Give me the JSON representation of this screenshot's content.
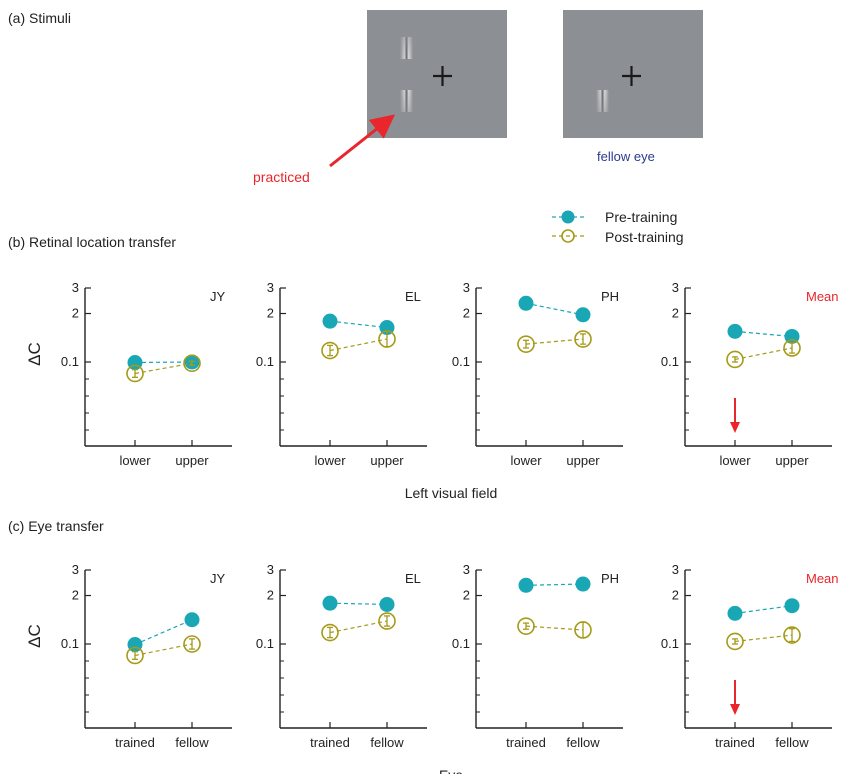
{
  "stimuli": {
    "title": "(a) Stimuli",
    "practiced_label": "practiced",
    "fellow_label": "fellow eye",
    "panel_bg": "#8c8f94"
  },
  "legend": {
    "pre": "Pre-training",
    "post": "Post-training"
  },
  "colors": {
    "pre": "#1aa7b5",
    "post": "#a69a18",
    "accent": "#e8262b",
    "fellow_text": "#2b3a8f"
  },
  "chart_data": [
    {
      "type": "scatter",
      "section": "(b) Retinal location transfer",
      "subject": "JY",
      "categories": [
        "lower",
        "upper"
      ],
      "yticks": [
        "3",
        "2",
        "0.1"
      ],
      "series": [
        {
          "name": "Pre-training",
          "values": [
            0.08,
            0.1
          ],
          "err": [
            0.15,
            0.1
          ]
        },
        {
          "name": "Post-training",
          "values": [
            -0.35,
            0.05
          ],
          "err": [
            0.15,
            0.08
          ]
        }
      ]
    },
    {
      "type": "scatter",
      "section": "(b) Retinal location transfer",
      "subject": "EL",
      "categories": [
        "lower",
        "upper"
      ],
      "yticks": [
        "3",
        "2",
        "0.1"
      ],
      "series": [
        {
          "name": "Pre-training",
          "values": [
            1.7,
            1.45
          ],
          "err": [
            0.22,
            0.1
          ]
        },
        {
          "name": "Post-training",
          "values": [
            0.55,
            1.0
          ],
          "err": [
            0.2,
            0.3
          ]
        }
      ]
    },
    {
      "type": "scatter",
      "section": "(b) Retinal location transfer",
      "subject": "PH",
      "categories": [
        "lower",
        "upper"
      ],
      "yticks": [
        "3",
        "2",
        "0.1"
      ],
      "series": [
        {
          "name": "Pre-training",
          "values": [
            2.4,
            1.95
          ],
          "err": [
            0.1,
            0.1
          ]
        },
        {
          "name": "Post-training",
          "values": [
            0.8,
            1.0
          ],
          "err": [
            0.15,
            0.2
          ]
        }
      ]
    },
    {
      "type": "scatter",
      "section": "(b) Retinal location transfer",
      "subject": "Mean",
      "categories": [
        "lower",
        "upper"
      ],
      "yticks": [
        "3",
        "2",
        "0.1"
      ],
      "series": [
        {
          "name": "Pre-training",
          "values": [
            1.3,
            1.1
          ],
          "err": [
            0.2,
            0.1
          ]
        },
        {
          "name": "Post-training",
          "values": [
            0.2,
            0.65
          ],
          "err": [
            0.1,
            0.2
          ]
        }
      ]
    },
    {
      "type": "scatter",
      "section": "(c) Eye transfer",
      "subject": "JY",
      "categories": [
        "trained",
        "fellow"
      ],
      "yticks": [
        "3",
        "2",
        "0.1"
      ],
      "series": [
        {
          "name": "Pre-training",
          "values": [
            0.08,
            1.05
          ],
          "err": [
            0.15,
            0.05
          ]
        },
        {
          "name": "Post-training",
          "values": [
            -0.35,
            0.1
          ],
          "err": [
            0.15,
            0.2
          ]
        }
      ]
    },
    {
      "type": "scatter",
      "section": "(c) Eye transfer",
      "subject": "EL",
      "categories": [
        "trained",
        "fellow"
      ],
      "yticks": [
        "3",
        "2",
        "0.1"
      ],
      "series": [
        {
          "name": "Pre-training",
          "values": [
            1.7,
            1.65
          ],
          "err": [
            0.22,
            0.08
          ]
        },
        {
          "name": "Post-training",
          "values": [
            0.55,
            1.0
          ],
          "err": [
            0.2,
            0.2
          ]
        }
      ]
    },
    {
      "type": "scatter",
      "section": "(c) Eye transfer",
      "subject": "PH",
      "categories": [
        "trained",
        "fellow"
      ],
      "yticks": [
        "3",
        "2",
        "0.1"
      ],
      "series": [
        {
          "name": "Pre-training",
          "values": [
            2.4,
            2.45
          ],
          "err": [
            0.05,
            0.05
          ]
        },
        {
          "name": "Post-training",
          "values": [
            0.8,
            0.65
          ],
          "err": [
            0.12,
            0.3
          ]
        }
      ]
    },
    {
      "type": "scatter",
      "section": "(c) Eye transfer",
      "subject": "Mean",
      "categories": [
        "trained",
        "fellow"
      ],
      "yticks": [
        "3",
        "2",
        "0.1"
      ],
      "series": [
        {
          "name": "Pre-training",
          "values": [
            1.3,
            1.6
          ],
          "err": [
            0.2,
            0.1
          ]
        },
        {
          "name": "Post-training",
          "values": [
            0.2,
            0.45
          ],
          "err": [
            0.1,
            0.25
          ]
        }
      ]
    }
  ],
  "sections": [
    {
      "title": "(b) Retinal location transfer",
      "ylabel": "ΔC",
      "xtitle": "Left visual field"
    },
    {
      "title": "(c) Eye transfer",
      "ylabel": "ΔC",
      "xtitle": "Eye"
    }
  ]
}
